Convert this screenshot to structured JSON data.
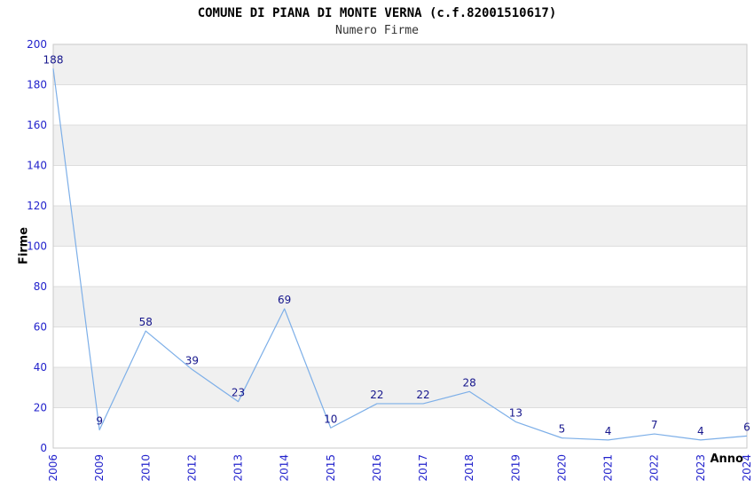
{
  "chart_data": {
    "type": "line",
    "title": "COMUNE DI PIANA DI MONTE VERNA (c.f.82001510617)",
    "subtitle": "Numero Firme",
    "xlabel": "Anno",
    "ylabel": "Firme",
    "categories": [
      "2006",
      "2009",
      "2010",
      "2012",
      "2013",
      "2014",
      "2015",
      "2016",
      "2017",
      "2018",
      "2019",
      "2020",
      "2021",
      "2022",
      "2023",
      "2024"
    ],
    "values": [
      188,
      9,
      58,
      39,
      23,
      69,
      10,
      22,
      22,
      28,
      13,
      5,
      4,
      7,
      4,
      6
    ],
    "ylim": [
      0,
      200
    ],
    "ytick_step": 20,
    "yticks": [
      0,
      20,
      40,
      60,
      80,
      100,
      120,
      140,
      160,
      180,
      200
    ],
    "grid": true,
    "alternating_bands": true,
    "legend_position": "none",
    "data_labels_shown": true
  },
  "colors": {
    "line": "#7dafe8",
    "tick_label": "#2222cc",
    "data_label": "#16168c",
    "band_gray": "#f0f0f0",
    "band_white": "#ffffff",
    "grid_line": "#dddddd",
    "plot_border": "#c9c9c9",
    "title_text": "#000000",
    "subtitle_text": "#333333",
    "axis_title_text": "#000000",
    "background": "#ffffff"
  }
}
